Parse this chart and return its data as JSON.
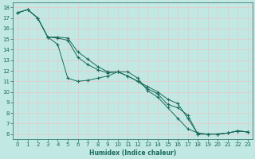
{
  "title": "",
  "xlabel": "Humidex (Indice chaleur)",
  "ylabel": "",
  "bg_color": "#c2e8e4",
  "grid_color": "#e8c8c8",
  "line_color": "#1a6b5a",
  "marker_color": "#1a6b5a",
  "xlim": [
    -0.5,
    23.5
  ],
  "ylim": [
    5.5,
    18.5
  ],
  "yticks": [
    6,
    7,
    8,
    9,
    10,
    11,
    12,
    13,
    14,
    15,
    16,
    17,
    18
  ],
  "xticks": [
    0,
    1,
    2,
    3,
    4,
    5,
    6,
    7,
    8,
    9,
    10,
    11,
    12,
    13,
    14,
    15,
    16,
    17,
    18,
    19,
    20,
    21,
    22,
    23
  ],
  "series": [
    {
      "x": [
        0,
        1,
        2,
        3,
        4,
        5,
        6,
        7,
        8,
        9,
        10,
        11,
        12,
        13,
        14,
        15,
        16,
        17,
        18,
        19,
        20,
        21,
        22,
        23
      ],
      "y": [
        17.5,
        17.8,
        17.0,
        15.2,
        14.5,
        11.3,
        11.0,
        11.1,
        11.3,
        11.5,
        11.9,
        11.9,
        11.3,
        10.1,
        9.5,
        8.5,
        7.5,
        6.5,
        6.1,
        6.0,
        6.0,
        6.1,
        6.3,
        6.2
      ]
    },
    {
      "x": [
        0,
        1,
        2,
        3,
        4,
        5,
        6,
        7,
        8,
        9,
        10,
        11,
        12,
        13,
        14,
        15,
        16,
        17,
        18,
        19,
        20,
        21,
        22,
        23
      ],
      "y": [
        17.5,
        17.8,
        17.0,
        15.2,
        15.1,
        14.9,
        13.3,
        12.6,
        12.1,
        11.8,
        11.9,
        11.5,
        11.0,
        10.3,
        9.8,
        8.8,
        8.5,
        7.8,
        6.0,
        6.0,
        6.0,
        6.1,
        6.3,
        6.2
      ]
    },
    {
      "x": [
        0,
        1,
        2,
        3,
        4,
        5,
        6,
        7,
        8,
        9,
        10,
        11,
        12,
        13,
        14,
        15,
        16,
        17,
        18,
        19,
        20,
        21,
        22,
        23
      ],
      "y": [
        17.5,
        17.8,
        17.0,
        15.2,
        15.2,
        15.1,
        13.8,
        13.1,
        12.4,
        11.9,
        11.9,
        11.5,
        11.0,
        10.5,
        10.0,
        9.3,
        8.9,
        7.5,
        6.0,
        6.0,
        6.0,
        6.1,
        6.3,
        6.2
      ]
    }
  ]
}
